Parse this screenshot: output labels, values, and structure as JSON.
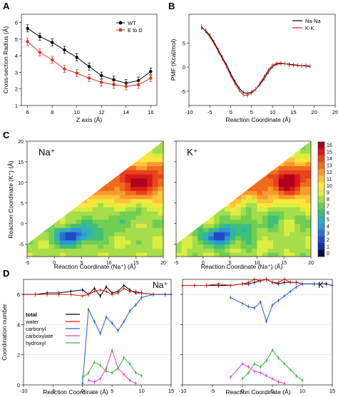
{
  "panels": {
    "A": {
      "letter": "A",
      "xlabel": "Z axis (Å)",
      "ylabel": "Cross-section Radius (Å)",
      "xticks": [
        "6",
        "8",
        "10",
        "12",
        "14",
        "16"
      ],
      "yticks": [
        "1",
        "2",
        "3",
        "4",
        "5",
        "6"
      ],
      "legend": [
        "WT",
        "E to D"
      ]
    },
    "B": {
      "letter": "B",
      "xlabel": "Reaction Coordinate (Å)",
      "ylabel": "PMF (Kcal/mol)",
      "xticks": [
        "-10",
        "-5",
        "0",
        "5",
        "10",
        "15",
        "20",
        "25"
      ],
      "yticks": [
        "-5",
        "0",
        "5"
      ],
      "legend": [
        "Na-Na",
        "K-K"
      ]
    },
    "C": {
      "letter": "C",
      "ylabel": "Reaction Coordinate (K⁺) (Å)",
      "left_title": "Na⁺",
      "right_title": "K⁺",
      "left_xlabel": "Reaction Coordinate (Na⁺) (Å)",
      "right_xlabel": "Reaction Coordinate (Na⁺) (Å)",
      "xticks": [
        "-5",
        "0",
        "5",
        "10",
        "15",
        "20"
      ],
      "yticks": [
        "-5",
        "0",
        "5",
        "10",
        "15",
        "20"
      ],
      "colorbar_ticks": [
        "16",
        "15",
        "14",
        "13",
        "12",
        "11",
        "10",
        "9",
        "8",
        "7",
        "6",
        "5",
        "4",
        "3",
        "2",
        "1",
        "0"
      ],
      "colorbar_colors": [
        "#b2001f",
        "#d7191c",
        "#e8431b",
        "#f26a1c",
        "#f99a2c",
        "#fbc33a",
        "#fde63c",
        "#d8ee43",
        "#a6dd4a",
        "#6fcf51",
        "#3fbe79",
        "#2fb2b4",
        "#2f97d8",
        "#2e6fd3",
        "#1f4cc4",
        "#142da0",
        "#050e44"
      ]
    },
    "D": {
      "letter": "D",
      "ylabel": "Coordination number",
      "xlabel": "Reaction Coordinate (Å)",
      "left_title": "Na⁺",
      "right_title": "K⁺",
      "xticks": [
        "-10",
        "-5",
        "0",
        "5",
        "10",
        "15"
      ],
      "yticks": [
        "0",
        "2",
        "4",
        "6"
      ],
      "legend": [
        {
          "label": "total",
          "color": "#000000"
        },
        {
          "label": "water",
          "color": "#d7191c"
        },
        {
          "label": "carbonyl",
          "color": "#2e5cd6"
        },
        {
          "label": "carboxylate",
          "color": "#e040c8"
        },
        {
          "label": "hydroxyl",
          "color": "#3cb043"
        }
      ]
    }
  },
  "chart_data": [
    {
      "panel": "A",
      "type": "line",
      "x": [
        6,
        7,
        8,
        9,
        10,
        11,
        12,
        13,
        14,
        15,
        16
      ],
      "series": [
        {
          "name": "WT",
          "color": "#000000",
          "values": [
            5.65,
            5.15,
            4.8,
            4.35,
            3.9,
            3.35,
            2.8,
            2.55,
            2.35,
            2.5,
            3.05
          ]
        },
        {
          "name": "E to D",
          "color": "#d7341c",
          "values": [
            4.85,
            4.2,
            3.75,
            3.2,
            2.95,
            2.65,
            2.4,
            2.25,
            2.15,
            2.25,
            2.65
          ]
        }
      ],
      "xlabel": "Z axis (Å)",
      "ylabel": "Cross-section Radius (Å)",
      "xlim": [
        5.5,
        16.5
      ],
      "ylim": [
        1,
        6.5
      ],
      "legend_position": "top-right"
    },
    {
      "panel": "B",
      "type": "line",
      "x": [
        -7,
        -6,
        -5,
        -4,
        -3,
        -2,
        -1,
        0,
        1,
        2,
        3,
        4,
        5,
        6,
        7,
        8,
        9,
        10,
        11,
        12,
        13,
        14,
        15,
        16,
        17,
        18,
        19
      ],
      "series": [
        {
          "name": "Na-Na",
          "color": "#000000",
          "values": [
            8.2,
            7.6,
            6.6,
            5.2,
            3.6,
            2.0,
            0.4,
            -1.4,
            -3.0,
            -4.4,
            -5.3,
            -5.5,
            -5.2,
            -4.6,
            -3.6,
            -2.4,
            -1.0,
            0.1,
            0.6,
            0.7,
            0.7,
            0.6,
            0.5,
            0.4,
            0.3,
            0.3,
            0.2
          ]
        },
        {
          "name": "K-K",
          "color": "#d7191c",
          "values": [
            8.5,
            7.4,
            6.3,
            4.9,
            3.3,
            1.7,
            0.1,
            -1.8,
            -3.4,
            -4.8,
            -5.8,
            -5.9,
            -5.4,
            -4.6,
            -3.4,
            -2.0,
            -0.6,
            0.4,
            0.8,
            0.8,
            0.7,
            0.5,
            0.4,
            0.3,
            0.3,
            0.2,
            0.1
          ]
        }
      ],
      "xlabel": "Reaction Coordinate (Å)",
      "ylabel": "PMF (Kcal/mol)",
      "xlim": [
        -10,
        25
      ],
      "ylim": [
        -8,
        11
      ],
      "legend_position": "top-right"
    },
    {
      "panel": "C",
      "type": "heatmap",
      "title": "Na⁺ / K⁺",
      "xlabel": "Reaction Coordinate (Na⁺) (Å)",
      "ylabel": "Reaction Coordinate (K⁺) (Å)",
      "xlim": [
        -5,
        20
      ],
      "ylim": [
        -8,
        20
      ],
      "zlim": [
        0,
        16
      ],
      "minimum": {
        "x": 3,
        "y": -3,
        "value": 0
      },
      "maximum": {
        "x": 16,
        "y": 10,
        "value": 16
      },
      "note": "Energy only defined below the diagonal y = x"
    },
    {
      "panel": "D",
      "type": "line",
      "x": [
        -10,
        -8,
        -6,
        -4,
        -2,
        0,
        1,
        2,
        3,
        4,
        5,
        6,
        7,
        8,
        9,
        10,
        12,
        14,
        15
      ],
      "xlim": [
        -10,
        15
      ],
      "ylim": [
        0,
        7
      ],
      "subplots": [
        {
          "title": "Na⁺",
          "series": [
            {
              "name": "total",
              "values": [
                6.0,
                6.0,
                6.1,
                6.1,
                6.2,
                6.3,
                6.0,
                6.4,
                5.9,
                6.5,
                6.1,
                6.2,
                6.6,
                6.3,
                6.1,
                6.1,
                6.0,
                6.0,
                6.0
              ]
            },
            {
              "name": "water",
              "values": [
                6.0,
                6.0,
                6.0,
                6.0,
                6.0,
                5.9,
                6.0,
                6.2,
                6.3,
                6.2,
                6.0,
                6.1,
                6.4,
                6.2,
                6.2,
                6.1,
                6.0,
                6.0,
                6.0
              ]
            },
            {
              "name": "carbonyl",
              "values": [
                0,
                0,
                0,
                0,
                0,
                0.1,
                5.0,
                4.2,
                3.4,
                4.5,
                4.1,
                3.6,
                4.2,
                4.9,
                5.3,
                5.8,
                6.0,
                6.0,
                6.0
              ]
            },
            {
              "name": "carboxylate",
              "values": [
                0,
                0,
                0,
                0,
                0,
                0,
                0.3,
                0.2,
                0.4,
                1.1,
                2.3,
                1.1,
                0.7,
                0.3,
                0.1,
                0,
                0,
                0,
                0
              ]
            },
            {
              "name": "hydroxyl",
              "values": [
                0,
                0,
                0,
                0,
                0,
                0.5,
                0.8,
                1.5,
                1.3,
                0.9,
                0.8,
                1.1,
                1.8,
                1.4,
                0.8,
                0.6,
                0,
                0,
                0
              ]
            }
          ]
        },
        {
          "title": "K⁺",
          "series": [
            {
              "name": "total",
              "values": [
                6.6,
                6.6,
                6.6,
                6.6,
                6.6,
                6.7,
                6.7,
                6.8,
                6.9,
                7.0,
                6.8,
                6.7,
                6.8,
                6.8,
                6.8,
                6.7,
                6.7,
                6.7,
                6.6
              ]
            },
            {
              "name": "water",
              "values": [
                6.6,
                6.6,
                6.6,
                6.7,
                6.6,
                6.7,
                6.8,
                7.0,
                6.9,
                7.0,
                6.8,
                6.8,
                7.0,
                6.8,
                6.8,
                6.7,
                6.7,
                6.7,
                6.6
              ]
            },
            {
              "name": "carbonyl",
              "values": [
                0,
                0,
                0,
                0,
                5.8,
                5.4,
                5.2,
                5.1,
                5.5,
                4.2,
                5.3,
                5.6,
                5.9,
                6.2,
                6.5,
                6.7,
                6.7,
                6.7,
                6.6
              ]
            },
            {
              "name": "carboxylate",
              "values": [
                0,
                0,
                0,
                0,
                0.5,
                1.4,
                1.2,
                0.9,
                0.8,
                0.6,
                0.4,
                0.2,
                0.1,
                0,
                0,
                0,
                0,
                0,
                0
              ]
            },
            {
              "name": "hydroxyl",
              "values": [
                0,
                0,
                0,
                0,
                0,
                0.4,
                0.8,
                1.4,
                1.2,
                1.6,
                2.3,
                1.8,
                1.4,
                1.0,
                0.6,
                0.3,
                0,
                0,
                0
              ]
            }
          ]
        }
      ]
    }
  ]
}
